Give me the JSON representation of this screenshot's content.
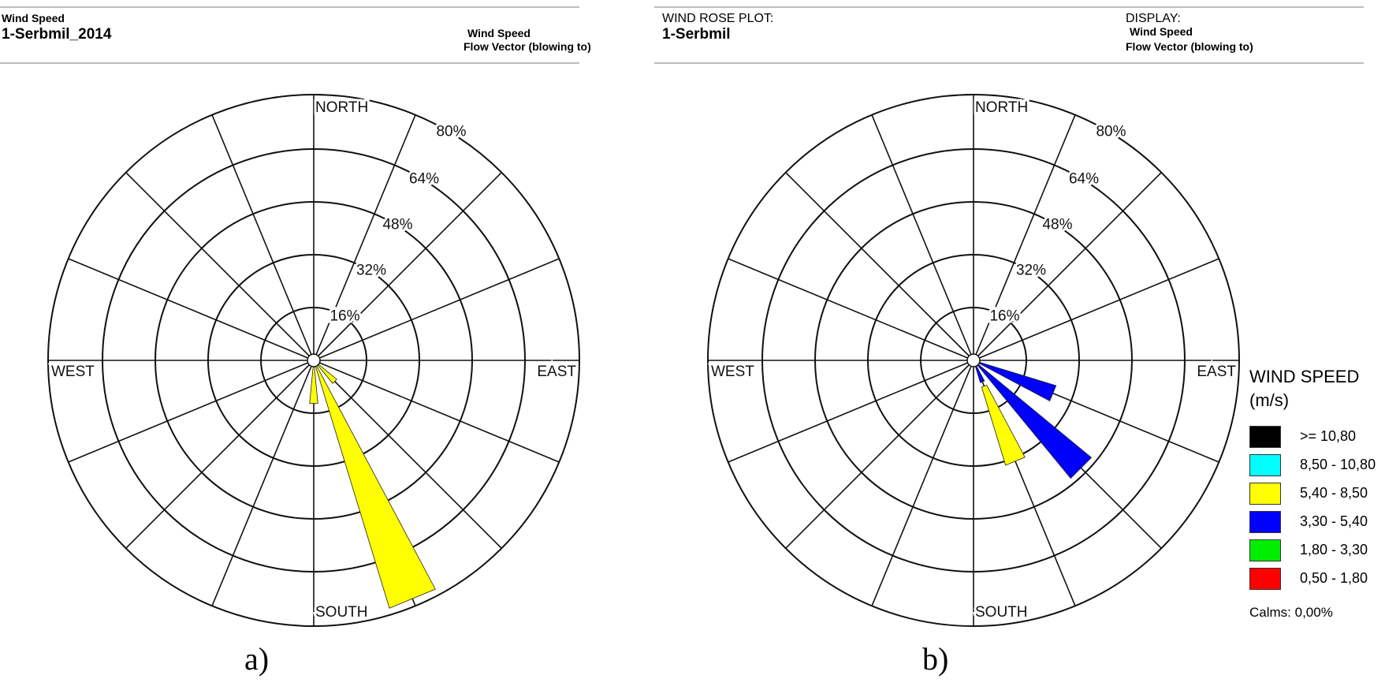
{
  "panel_a": {
    "header": {
      "small_label": "Wind Speed",
      "station": "1-Serbmil_2014",
      "display_line1": "Wind Speed",
      "display_line2": "Flow Vector (blowing to)"
    },
    "caption": "a)"
  },
  "panel_b": {
    "header": {
      "plot_label": "WIND ROSE PLOT:",
      "station": "1-Serbmil",
      "display_label": "DISPLAY:",
      "display_line1": "Wind Speed",
      "display_line2": "Flow Vector (blowing to)"
    },
    "caption": "b)",
    "legend": {
      "title_line1": "WIND SPEED",
      "title_line2": "(m/s)",
      "items": [
        {
          "label": ">= 10,80",
          "color": "#000000"
        },
        {
          "label": "8,50 - 10,80",
          "color": "#00ffff"
        },
        {
          "label": "5,40 - 8,50",
          "color": "#ffff00"
        },
        {
          "label": "3,30 - 5,40",
          "color": "#0000ff"
        },
        {
          "label": "1,80 - 3,30",
          "color": "#00ee00"
        },
        {
          "label": "0,50 - 1,80",
          "color": "#ff0000"
        }
      ],
      "calms": "Calms: 0,00%"
    }
  },
  "chart_data": [
    {
      "type": "wind-rose",
      "direction_labels": {
        "north": "NORTH",
        "east": "EAST",
        "south": "SOUTH",
        "west": "WEST"
      },
      "ring_labels": [
        "16%",
        "32%",
        "48%",
        "64%",
        "80%"
      ],
      "rlim": [
        0,
        80
      ],
      "sectors": 16,
      "bars": [
        {
          "direction_deg": 157.5,
          "bin": "5,40 - 8,50",
          "color": "#ffff00",
          "percent": 78
        },
        {
          "direction_deg": 180,
          "bin": "5,40 - 8,50",
          "color": "#ffff00",
          "percent": 13
        },
        {
          "direction_deg": 135,
          "bin": "5,40 - 8,50",
          "color": "#ffff00",
          "percent": 9
        }
      ]
    },
    {
      "type": "wind-rose",
      "direction_labels": {
        "north": "NORTH",
        "east": "EAST",
        "south": "SOUTH",
        "west": "WEST"
      },
      "ring_labels": [
        "16%",
        "32%",
        "48%",
        "64%",
        "80%"
      ],
      "rlim": [
        0,
        80
      ],
      "sectors": 16,
      "bars": [
        {
          "direction_deg": 135,
          "bin": "3,30 - 5,40",
          "color": "#0000ff",
          "percent": 46
        },
        {
          "direction_deg": 112.5,
          "bin": "3,30 - 5,40",
          "color": "#0000ff",
          "percent": 26
        },
        {
          "direction_deg": 157.5,
          "bin": "3,30 - 5,40",
          "color": "#0000ff",
          "percent": 7
        },
        {
          "direction_deg": 157.5,
          "bin": "5,40 - 8,50",
          "color": "#ffff00",
          "percent": 26,
          "base": 7
        }
      ]
    }
  ]
}
